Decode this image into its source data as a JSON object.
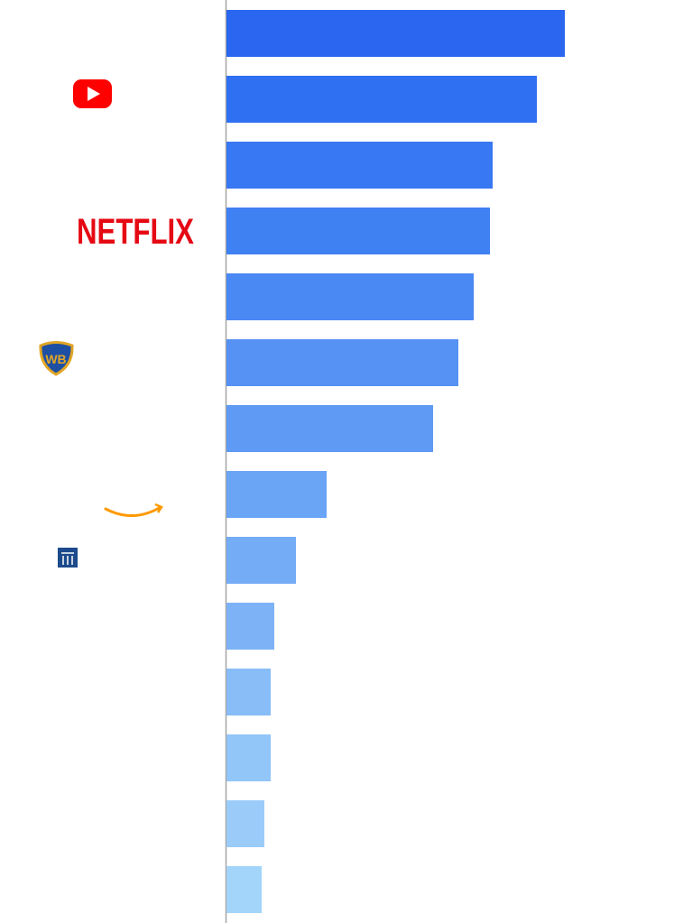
{
  "chart_data": {
    "type": "bar",
    "orientation": "horizontal",
    "categories": [
      null,
      null,
      null,
      "NETFLIX",
      null,
      null,
      null,
      null,
      null,
      null,
      null,
      null,
      null,
      null
    ],
    "values": [
      375,
      344,
      295,
      292,
      274,
      257,
      229,
      111,
      77,
      53,
      49,
      49,
      42,
      39
    ],
    "colors": [
      "#2a66f0",
      "#2f6ff2",
      "#3878f2",
      "#3f80f2",
      "#4a88f3",
      "#5592f4",
      "#5f9af4",
      "#6aa4f5",
      "#74acf6",
      "#7db3f6",
      "#88bdf7",
      "#92c5f8",
      "#9bccf9",
      "#a3d4fa"
    ]
  }
}
